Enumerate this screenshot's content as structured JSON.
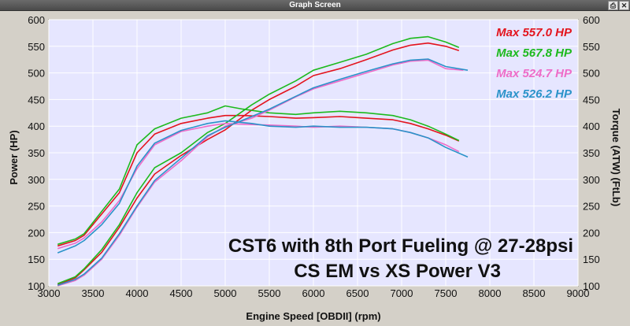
{
  "window": {
    "title": "Graph Screen",
    "print_icon": "printer-icon",
    "close_icon": "close-icon"
  },
  "chart_data": {
    "type": "line",
    "xlabel": "Engine Speed [OBDII] (rpm)",
    "ylabel": "Power (HP)",
    "y2label": "Torque (ATW) (FtLb)",
    "xlim": [
      3000,
      9000
    ],
    "ylim": [
      100,
      600
    ],
    "y2lim": [
      100,
      600
    ],
    "xticks": [
      3000,
      3500,
      4000,
      4500,
      5000,
      5500,
      6000,
      6500,
      7000,
      7500,
      8000,
      8500,
      9000
    ],
    "yticks": [
      100,
      150,
      200,
      250,
      300,
      350,
      400,
      450,
      500,
      550,
      600
    ],
    "grid": true,
    "background": "#e6e6ff",
    "annotation": [
      "CST6 with 8th Port Fueling @ 27-28psi",
      "CS EM vs XS Power V3"
    ],
    "legend_position": "top-right",
    "series": [
      {
        "legend": "Max 557.0 HP",
        "color": "#e3141d",
        "power": {
          "x": [
            3100,
            3300,
            3400,
            3600,
            3800,
            4000,
            4200,
            4500,
            4800,
            5000,
            5300,
            5500,
            5800,
            6000,
            6300,
            6600,
            6900,
            7100,
            7300,
            7500,
            7650
          ],
          "y": [
            102,
            115,
            130,
            163,
            210,
            265,
            310,
            345,
            375,
            393,
            430,
            450,
            475,
            495,
            508,
            525,
            543,
            552,
            556,
            550,
            542
          ]
        },
        "torque": {
          "x": [
            3100,
            3300,
            3400,
            3600,
            3800,
            4000,
            4200,
            4500,
            4800,
            5000,
            5200,
            5500,
            5800,
            6000,
            6300,
            6600,
            6900,
            7100,
            7300,
            7500,
            7650
          ],
          "y": [
            175,
            185,
            195,
            235,
            275,
            350,
            385,
            405,
            415,
            420,
            420,
            418,
            415,
            416,
            418,
            415,
            412,
            405,
            395,
            383,
            372
          ]
        }
      },
      {
        "legend": "Max 567.8 HP",
        "color": "#1dba1d",
        "power": {
          "x": [
            3100,
            3300,
            3400,
            3600,
            3800,
            4000,
            4200,
            4500,
            4800,
            5000,
            5300,
            5500,
            5800,
            6000,
            6300,
            6600,
            6900,
            7100,
            7300,
            7500,
            7650
          ],
          "y": [
            104,
            117,
            132,
            168,
            215,
            275,
            322,
            350,
            388,
            405,
            440,
            460,
            485,
            505,
            520,
            535,
            555,
            565,
            568,
            558,
            548
          ]
        },
        "torque": {
          "x": [
            3100,
            3300,
            3400,
            3600,
            3800,
            4000,
            4200,
            4500,
            4800,
            5000,
            5200,
            5500,
            5800,
            6000,
            6300,
            6600,
            6900,
            7100,
            7300,
            7500,
            7650
          ],
          "y": [
            178,
            188,
            198,
            240,
            282,
            365,
            395,
            415,
            425,
            438,
            432,
            425,
            422,
            425,
            428,
            425,
            420,
            412,
            400,
            385,
            373
          ]
        }
      },
      {
        "legend": "Max 524.7 HP",
        "color": "#ee6cc8",
        "power": {
          "x": [
            3100,
            3300,
            3400,
            3600,
            3800,
            4000,
            4200,
            4500,
            4800,
            5000,
            5300,
            5500,
            5800,
            6000,
            6300,
            6600,
            6900,
            7100,
            7300,
            7500,
            7700
          ],
          "y": [
            100,
            110,
            120,
            150,
            195,
            248,
            295,
            335,
            380,
            400,
            415,
            430,
            455,
            470,
            485,
            500,
            515,
            522,
            524,
            508,
            505
          ]
        },
        "torque": {
          "x": [
            3100,
            3300,
            3400,
            3600,
            3800,
            4000,
            4200,
            4500,
            4800,
            5000,
            5300,
            5500,
            5800,
            6000,
            6300,
            6600,
            6900,
            7100,
            7300,
            7500,
            7650
          ],
          "y": [
            170,
            180,
            190,
            220,
            260,
            320,
            365,
            390,
            400,
            405,
            403,
            402,
            400,
            398,
            400,
            398,
            395,
            388,
            378,
            365,
            352
          ]
        }
      },
      {
        "legend": "Max 526.2 HP",
        "color": "#2a93c9",
        "power": {
          "x": [
            3100,
            3300,
            3400,
            3600,
            3800,
            4000,
            4200,
            4500,
            4800,
            5000,
            5300,
            5500,
            5800,
            6000,
            6300,
            6600,
            6900,
            7100,
            7300,
            7500,
            7750
          ],
          "y": [
            101,
            112,
            122,
            152,
            198,
            250,
            298,
            340,
            382,
            398,
            418,
            432,
            456,
            472,
            488,
            503,
            517,
            524,
            526,
            512,
            505
          ]
        },
        "torque": {
          "x": [
            3100,
            3300,
            3400,
            3600,
            3800,
            4000,
            4200,
            4500,
            4800,
            5000,
            5300,
            5500,
            5800,
            6000,
            6300,
            6600,
            6900,
            7100,
            7300,
            7500,
            7750
          ],
          "y": [
            162,
            175,
            185,
            215,
            255,
            325,
            368,
            392,
            405,
            410,
            405,
            400,
            398,
            400,
            398,
            398,
            395,
            388,
            378,
            360,
            342
          ]
        }
      }
    ]
  }
}
